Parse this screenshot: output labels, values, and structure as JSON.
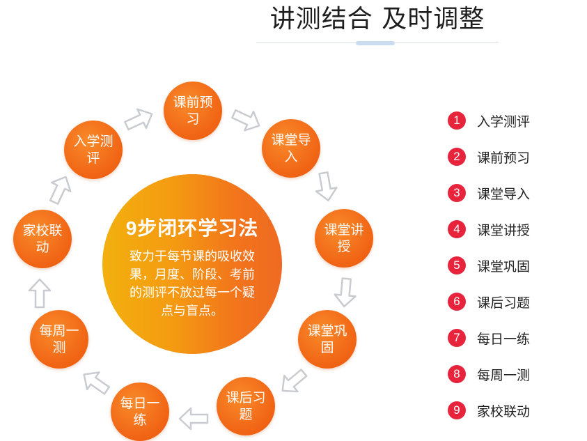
{
  "header": {
    "title": "讲测结合 及时调整"
  },
  "center": {
    "title": "9步闭环学习法",
    "description": "致力于每节课的吸收效果，月度、阶段、考前的测评不放过每一个疑点与盲点。"
  },
  "cycle": [
    {
      "label": "入学测评"
    },
    {
      "label": "课前预习"
    },
    {
      "label": "课堂导入"
    },
    {
      "label": "课堂讲授"
    },
    {
      "label": "课堂巩固"
    },
    {
      "label": "课后习题"
    },
    {
      "label": "每日一练"
    },
    {
      "label": "每周一测"
    },
    {
      "label": "家校联动"
    }
  ],
  "legend": [
    {
      "num": "1",
      "label": "入学测评"
    },
    {
      "num": "2",
      "label": "课前预习"
    },
    {
      "num": "3",
      "label": "课堂导入"
    },
    {
      "num": "4",
      "label": "课堂讲授"
    },
    {
      "num": "5",
      "label": "课堂巩固"
    },
    {
      "num": "6",
      "label": "课后习题"
    },
    {
      "num": "7",
      "label": "每日一练"
    },
    {
      "num": "8",
      "label": "每周一测"
    },
    {
      "num": "9",
      "label": "家校联动"
    }
  ],
  "colors": {
    "step_circle": "#f06314",
    "legend_badge": "#e8243c",
    "center_gradient_start": "#f2b00d",
    "center_gradient_end": "#ee6a22",
    "arrow_outline": "#c8ccd0"
  }
}
